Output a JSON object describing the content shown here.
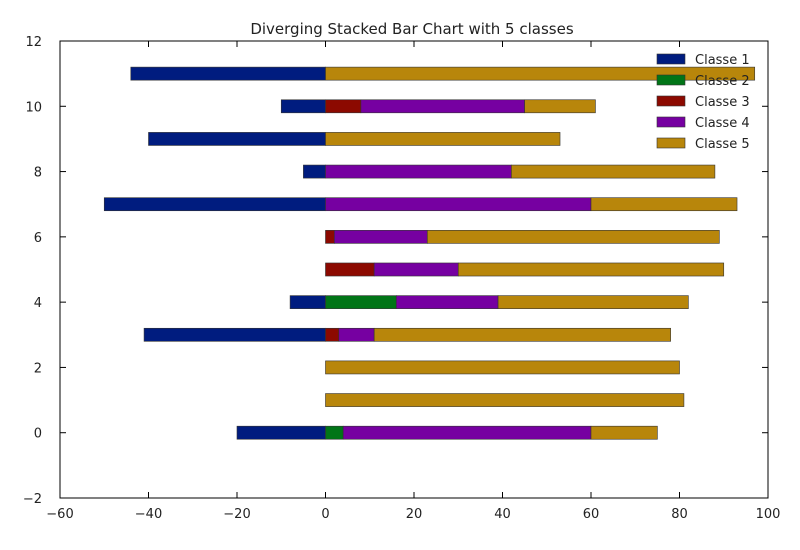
{
  "chart_data": {
    "type": "bar",
    "orientation": "horizontal",
    "stacked": true,
    "diverging": true,
    "title": "Diverging Stacked Bar Chart with 5 classes",
    "xlabel": "",
    "ylabel": "",
    "xlim": [
      -60,
      100
    ],
    "ylim": [
      -2,
      12
    ],
    "xticks": [
      -60,
      -40,
      -20,
      0,
      20,
      40,
      60,
      80,
      100
    ],
    "yticks": [
      -2,
      0,
      2,
      4,
      6,
      8,
      10,
      12
    ],
    "categories": [
      0,
      1,
      2,
      3,
      4,
      5,
      6,
      7,
      8,
      9,
      10,
      11
    ],
    "grid": false,
    "legend_position": "top-right",
    "series": [
      {
        "name": "Classe 1",
        "color": "#001c7f",
        "values": [
          -20,
          0,
          0,
          -41,
          -8,
          0,
          0,
          -50,
          -5,
          -40,
          -10,
          -44
        ]
      },
      {
        "name": "Classe 2",
        "color": "#017517",
        "values": [
          4,
          0,
          0,
          0,
          16,
          0,
          0,
          0,
          0,
          0,
          0,
          0
        ]
      },
      {
        "name": "Classe 3",
        "color": "#8c0900",
        "values": [
          0,
          0,
          0,
          3,
          0,
          11,
          2,
          0,
          0,
          0,
          8,
          0
        ]
      },
      {
        "name": "Classe 4",
        "color": "#7600a1",
        "values": [
          56,
          0,
          0,
          8,
          23,
          19,
          21,
          60,
          42,
          0,
          37,
          0
        ]
      },
      {
        "name": "Classe 5",
        "color": "#b8860b",
        "values": [
          15,
          81,
          80,
          67,
          43,
          60,
          66,
          33,
          46,
          53,
          16,
          97
        ]
      }
    ]
  }
}
